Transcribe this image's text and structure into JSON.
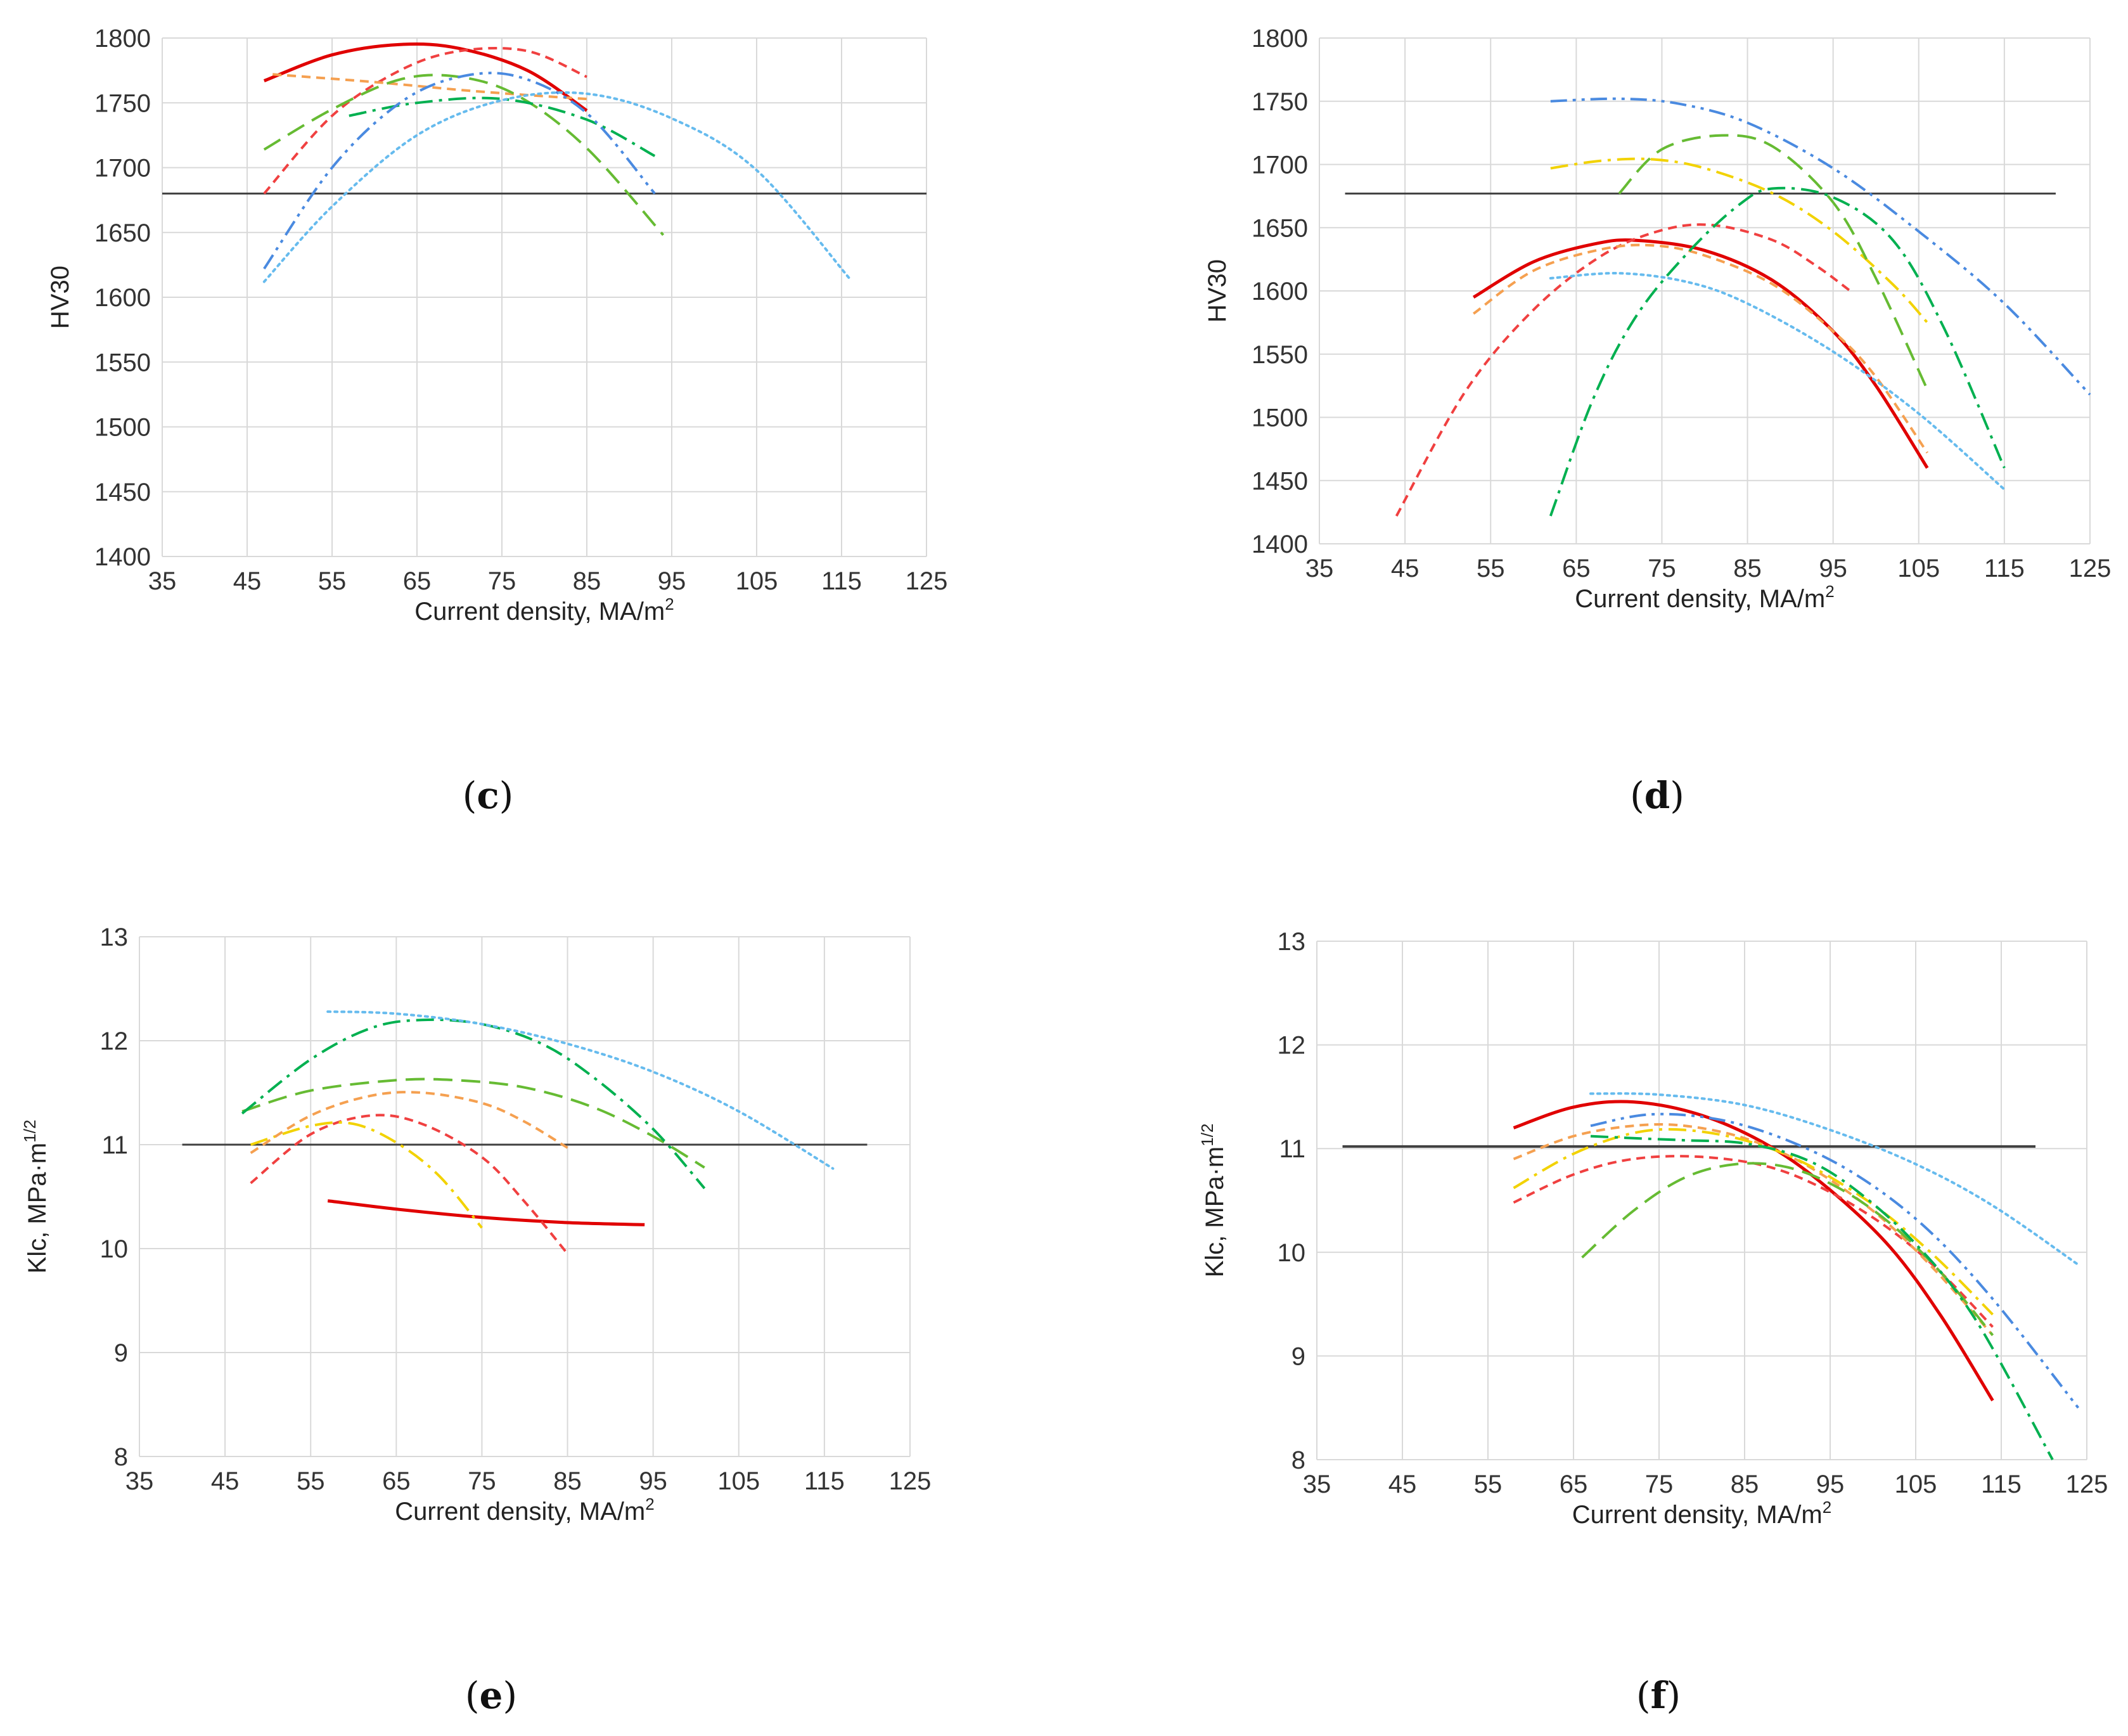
{
  "figure": {
    "colors": {
      "grid": "#d9d9d9",
      "threshold": "#404040",
      "red": "#e00000",
      "red_dash": "#f04040",
      "orange": "#f5a050",
      "green": "#66bb33",
      "teal": "#00b050",
      "blue": "#4a8ae0",
      "lightblue": "#66bbee",
      "yellow": "#f2d200"
    }
  },
  "chart_data": [
    {
      "id": "c",
      "type": "line",
      "panel_label": "c",
      "ylabel": "HV30",
      "xlabel": "Current density, MA/m",
      "xlabel_sup": "2",
      "xlim": [
        35,
        125
      ],
      "ylim": [
        1400,
        1800
      ],
      "xticks": [
        "35",
        "45",
        "55",
        "65",
        "75",
        "85",
        "95",
        "105",
        "115",
        "125"
      ],
      "yticks": [
        "1400",
        "1450",
        "1500",
        "1550",
        "1600",
        "1650",
        "1700",
        "1750",
        "1800"
      ],
      "threshold": 1680,
      "threshold_x": [
        35,
        125
      ],
      "series": [
        {
          "name": "red solid",
          "color": "red",
          "style": "solid",
          "x": [
            47,
            55,
            63,
            70,
            78,
            85
          ],
          "y": [
            1767,
            1787,
            1795,
            1792,
            1775,
            1744
          ]
        },
        {
          "name": "red dotted",
          "color": "red_dash",
          "style": "dash-short",
          "x": [
            47,
            55,
            63,
            70,
            78,
            85
          ],
          "y": [
            1680,
            1740,
            1775,
            1790,
            1790,
            1770
          ]
        },
        {
          "name": "orange dashed",
          "color": "orange",
          "style": "dash-short",
          "x": [
            48,
            60,
            70,
            78,
            85
          ],
          "y": [
            1772,
            1766,
            1760,
            1756,
            1753
          ]
        },
        {
          "name": "green long dash",
          "color": "green",
          "style": "dash-long",
          "x": [
            47,
            55,
            63,
            70,
            77,
            85,
            94
          ],
          "y": [
            1714,
            1745,
            1768,
            1770,
            1755,
            1715,
            1648
          ]
        },
        {
          "name": "teal dash-dot",
          "color": "teal",
          "style": "dashdot",
          "x": [
            57,
            65,
            75,
            85,
            93
          ],
          "y": [
            1740,
            1750,
            1753,
            1737,
            1709
          ]
        },
        {
          "name": "blue dash-dot-dot",
          "color": "blue",
          "style": "dashdotdot",
          "x": [
            47,
            55,
            63,
            70,
            77,
            85,
            93
          ],
          "y": [
            1622,
            1700,
            1750,
            1770,
            1770,
            1742,
            1680
          ]
        },
        {
          "name": "light blue dotted",
          "color": "lightblue",
          "style": "dotted",
          "x": [
            47,
            55,
            65,
            75,
            85,
            95,
            105,
            116
          ],
          "y": [
            1612,
            1670,
            1725,
            1752,
            1757,
            1738,
            1698,
            1614
          ]
        }
      ]
    },
    {
      "id": "d",
      "type": "line",
      "panel_label": "d",
      "ylabel": "HV30",
      "xlabel": "Current density,  MA/m",
      "xlabel_sup": "2",
      "xlim": [
        35,
        125
      ],
      "ylim": [
        1400,
        1800
      ],
      "xticks": [
        "35",
        "45",
        "55",
        "65",
        "75",
        "85",
        "95",
        "105",
        "115",
        "125"
      ],
      "yticks": [
        "1400",
        "1450",
        "1500",
        "1550",
        "1600",
        "1650",
        "1700",
        "1750",
        "1800"
      ],
      "threshold": 1677,
      "threshold_x": [
        38,
        121
      ],
      "series": [
        {
          "name": "red solid",
          "color": "red",
          "style": "solid",
          "x": [
            53,
            60,
            67,
            72,
            80,
            88,
            95,
            100,
            106
          ],
          "y": [
            1595,
            1623,
            1637,
            1640,
            1632,
            1608,
            1568,
            1525,
            1460
          ]
        },
        {
          "name": "red dotted",
          "color": "red_dash",
          "style": "dash-short",
          "x": [
            44,
            52,
            60,
            68,
            75,
            81,
            88,
            93,
            97
          ],
          "y": [
            1422,
            1520,
            1585,
            1628,
            1648,
            1652,
            1640,
            1620,
            1600
          ]
        },
        {
          "name": "orange dashed",
          "color": "orange",
          "style": "dash-short",
          "x": [
            53,
            60,
            68,
            74,
            80,
            88,
            95,
            100,
            106
          ],
          "y": [
            1582,
            1616,
            1633,
            1636,
            1628,
            1605,
            1568,
            1532,
            1472
          ]
        },
        {
          "name": "light blue dotted",
          "color": "lightblue",
          "style": "dotted",
          "x": [
            62,
            70,
            78,
            85,
            95,
            105,
            115
          ],
          "y": [
            1610,
            1614,
            1607,
            1590,
            1552,
            1503,
            1443
          ]
        },
        {
          "name": "yellow dash-dot",
          "color": "yellow",
          "style": "dashdot",
          "x": [
            62,
            68,
            74,
            80,
            88,
            95,
            102,
            106
          ],
          "y": [
            1697,
            1703,
            1704,
            1697,
            1677,
            1647,
            1605,
            1575
          ]
        },
        {
          "name": "green long dash",
          "color": "green",
          "style": "dash-long",
          "x": [
            70,
            75,
            82,
            88,
            95,
            100,
            106
          ],
          "y": [
            1677,
            1712,
            1723,
            1714,
            1670,
            1610,
            1522
          ]
        },
        {
          "name": "teal dash-dot",
          "color": "teal",
          "style": "dashdot",
          "x": [
            62,
            67,
            72,
            78,
            84,
            88,
            95,
            102,
            108,
            115
          ],
          "y": [
            1422,
            1515,
            1580,
            1630,
            1668,
            1681,
            1674,
            1640,
            1570,
            1460
          ]
        },
        {
          "name": "blue dash-dot-dot",
          "color": "blue",
          "style": "dashdotdot",
          "x": [
            62,
            70,
            77,
            85,
            95,
            105,
            115,
            125
          ],
          "y": [
            1750,
            1752,
            1748,
            1733,
            1697,
            1647,
            1590,
            1518
          ]
        }
      ]
    },
    {
      "id": "e",
      "type": "line",
      "panel_label": "e",
      "ylabel": "Klc, MPa·m",
      "ylabel_sup": "1/2",
      "xlabel": "Current density, MA/m",
      "xlabel_sup": "2",
      "xlim": [
        35,
        125
      ],
      "ylim": [
        8,
        13
      ],
      "xticks": [
        "35",
        "45",
        "55",
        "65",
        "75",
        "85",
        "95",
        "105",
        "115",
        "125"
      ],
      "yticks": [
        "8",
        "9",
        "10",
        "11",
        "12",
        "13"
      ],
      "threshold": 11,
      "threshold_x": [
        40,
        120
      ],
      "series": [
        {
          "name": "red solid",
          "color": "red",
          "style": "solid",
          "x": [
            57,
            65,
            75,
            85,
            94
          ],
          "y": [
            10.46,
            10.38,
            10.3,
            10.25,
            10.23
          ]
        },
        {
          "name": "red dotted",
          "color": "red_dash",
          "style": "dash-short",
          "x": [
            48,
            55,
            62,
            68,
            75,
            80,
            85
          ],
          "y": [
            10.63,
            11.1,
            11.28,
            11.2,
            10.88,
            10.45,
            9.95
          ]
        },
        {
          "name": "yellow dash-dot",
          "color": "yellow",
          "style": "dashdot",
          "x": [
            48,
            55,
            60,
            65,
            70,
            75
          ],
          "y": [
            11.0,
            11.18,
            11.2,
            11.02,
            10.7,
            10.2
          ]
        },
        {
          "name": "orange dashed",
          "color": "orange",
          "style": "dash-short",
          "x": [
            48,
            55,
            62,
            68,
            75,
            80,
            85
          ],
          "y": [
            10.92,
            11.28,
            11.47,
            11.5,
            11.4,
            11.22,
            10.97
          ]
        },
        {
          "name": "green long dash",
          "color": "green",
          "style": "dash-long",
          "x": [
            47,
            55,
            65,
            72,
            80,
            88,
            95,
            101
          ],
          "y": [
            11.32,
            11.52,
            11.62,
            11.62,
            11.55,
            11.36,
            11.08,
            10.78
          ]
        },
        {
          "name": "teal dash-dot",
          "color": "teal",
          "style": "dashdot",
          "x": [
            47,
            55,
            62,
            68,
            75,
            82,
            88,
            95,
            101
          ],
          "y": [
            11.3,
            11.82,
            12.12,
            12.2,
            12.16,
            11.97,
            11.65,
            11.15,
            10.58
          ]
        },
        {
          "name": "light blue dotted",
          "color": "lightblue",
          "style": "dotted",
          "x": [
            57,
            65,
            75,
            85,
            95,
            105,
            116
          ],
          "y": [
            12.28,
            12.26,
            12.16,
            11.97,
            11.7,
            11.32,
            10.77
          ]
        }
      ]
    },
    {
      "id": "f",
      "type": "line",
      "panel_label": "f",
      "ylabel": "Klc, MPa·m",
      "ylabel_sup": "1/2",
      "xlabel": "Current density,  MA/m",
      "xlabel_sup": "2",
      "xlim": [
        35,
        125
      ],
      "ylim": [
        8,
        13
      ],
      "xticks": [
        "35",
        "45",
        "55",
        "65",
        "75",
        "85",
        "95",
        "105",
        "115",
        "125"
      ],
      "yticks": [
        "8",
        "9",
        "10",
        "11",
        "12",
        "13"
      ],
      "threshold": 11.02,
      "threshold_x": [
        38,
        119
      ],
      "series": [
        {
          "name": "red solid",
          "color": "red",
          "style": "solid",
          "x": [
            58,
            65,
            72,
            80,
            88,
            95,
            102,
            108,
            114
          ],
          "y": [
            11.2,
            11.4,
            11.45,
            11.32,
            11.02,
            10.6,
            10.05,
            9.38,
            8.57
          ]
        },
        {
          "name": "red dotted",
          "color": "red_dash",
          "style": "dash-short",
          "x": [
            58,
            65,
            72,
            80,
            88,
            95,
            102,
            108,
            114
          ],
          "y": [
            10.48,
            10.75,
            10.9,
            10.92,
            10.82,
            10.58,
            10.22,
            9.8,
            9.28
          ]
        },
        {
          "name": "orange dashed",
          "color": "orange",
          "style": "dash-short",
          "x": [
            58,
            65,
            72,
            78,
            85,
            92,
            100,
            107,
            114
          ],
          "y": [
            10.9,
            11.12,
            11.22,
            11.22,
            11.1,
            10.85,
            10.4,
            9.85,
            9.2
          ]
        },
        {
          "name": "yellow dash-dot",
          "color": "yellow",
          "style": "dashdot",
          "x": [
            58,
            65,
            72,
            78,
            85,
            92,
            100,
            107,
            114
          ],
          "y": [
            10.62,
            10.95,
            11.15,
            11.18,
            11.08,
            10.86,
            10.46,
            9.98,
            9.4
          ]
        },
        {
          "name": "green long dash",
          "color": "green",
          "style": "dash-long",
          "x": [
            66,
            72,
            78,
            84,
            90,
            96,
            102,
            108,
            114
          ],
          "y": [
            9.95,
            10.4,
            10.72,
            10.85,
            10.82,
            10.62,
            10.28,
            9.8,
            9.2
          ]
        },
        {
          "name": "teal dash-dot",
          "color": "teal",
          "style": "dashdot",
          "x": [
            67,
            72,
            78,
            85,
            92,
            98,
            105,
            112,
            121
          ],
          "y": [
            11.12,
            11.1,
            11.08,
            11.05,
            10.9,
            10.6,
            10.08,
            9.35,
            8.0
          ]
        },
        {
          "name": "blue dash-dot-dot",
          "color": "blue",
          "style": "dashdotdot",
          "x": [
            67,
            74,
            82,
            90,
            98,
            106,
            114,
            124
          ],
          "y": [
            11.22,
            11.33,
            11.28,
            11.08,
            10.75,
            10.25,
            9.55,
            8.5
          ]
        },
        {
          "name": "light blue dotted",
          "color": "lightblue",
          "style": "dotted",
          "x": [
            67,
            75,
            85,
            95,
            105,
            114,
            124
          ],
          "y": [
            11.53,
            11.52,
            11.42,
            11.18,
            10.85,
            10.45,
            9.88
          ]
        }
      ]
    }
  ]
}
